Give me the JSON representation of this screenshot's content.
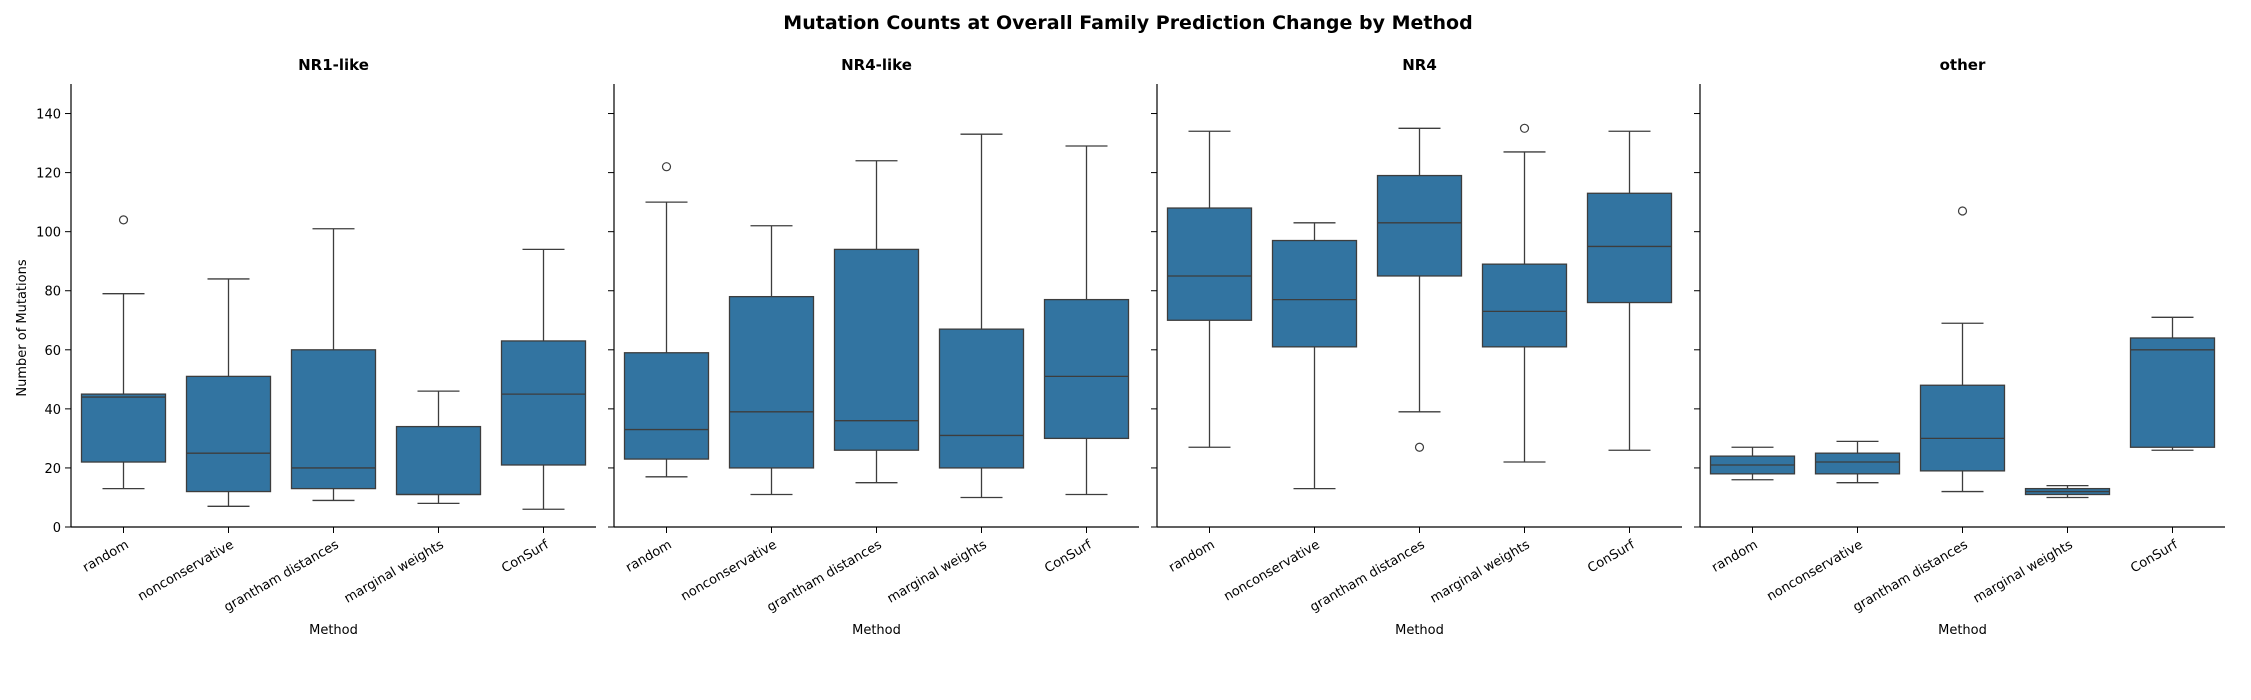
{
  "title": "Mutation Counts at Overall Family Prediction Change by Method",
  "y_label": "Number of Mutations",
  "x_label": "Method",
  "colors": {
    "box_fill": "#3274a1",
    "line": "#3d3d3d",
    "axis": "#000000"
  },
  "chart_data": {
    "type": "box",
    "title": "Mutation Counts at Overall Family Prediction Change by Method",
    "xlabel": "Method",
    "ylabel": "Number of Mutations",
    "ylim": [
      0,
      150
    ],
    "yticks": [
      0,
      20,
      40,
      60,
      80,
      100,
      120,
      140
    ],
    "categories": [
      "random",
      "nonconservative",
      "grantham distances",
      "marginal weights",
      "ConSurf"
    ],
    "shared_y": true,
    "grid": false,
    "panels": [
      {
        "title": "NR1-like",
        "boxes": [
          {
            "category": "random",
            "whisker_low": 13,
            "q1": 22,
            "median": 44,
            "q3": 45,
            "whisker_high": 79,
            "outliers": [
              104
            ]
          },
          {
            "category": "nonconservative",
            "whisker_low": 7,
            "q1": 12,
            "median": 25,
            "q3": 51,
            "whisker_high": 84,
            "outliers": []
          },
          {
            "category": "grantham distances",
            "whisker_low": 9,
            "q1": 13,
            "median": 20,
            "q3": 60,
            "whisker_high": 101,
            "outliers": []
          },
          {
            "category": "marginal weights",
            "whisker_low": 8,
            "q1": 11,
            "median": 11,
            "q3": 34,
            "whisker_high": 46,
            "outliers": []
          },
          {
            "category": "ConSurf",
            "whisker_low": 6,
            "q1": 21,
            "median": 45,
            "q3": 63,
            "whisker_high": 94,
            "outliers": []
          }
        ]
      },
      {
        "title": "NR4-like",
        "boxes": [
          {
            "category": "random",
            "whisker_low": 17,
            "q1": 23,
            "median": 33,
            "q3": 59,
            "whisker_high": 110,
            "outliers": [
              122
            ]
          },
          {
            "category": "nonconservative",
            "whisker_low": 11,
            "q1": 20,
            "median": 39,
            "q3": 78,
            "whisker_high": 102,
            "outliers": []
          },
          {
            "category": "grantham distances",
            "whisker_low": 15,
            "q1": 26,
            "median": 36,
            "q3": 94,
            "whisker_high": 124,
            "outliers": []
          },
          {
            "category": "marginal weights",
            "whisker_low": 10,
            "q1": 20,
            "median": 31,
            "q3": 67,
            "whisker_high": 133,
            "outliers": []
          },
          {
            "category": "ConSurf",
            "whisker_low": 11,
            "q1": 30,
            "median": 51,
            "q3": 77,
            "whisker_high": 129,
            "outliers": []
          }
        ]
      },
      {
        "title": "NR4",
        "boxes": [
          {
            "category": "random",
            "whisker_low": 27,
            "q1": 70,
            "median": 85,
            "q3": 108,
            "whisker_high": 134,
            "outliers": []
          },
          {
            "category": "nonconservative",
            "whisker_low": 13,
            "q1": 61,
            "median": 77,
            "q3": 97,
            "whisker_high": 103,
            "outliers": []
          },
          {
            "category": "grantham distances",
            "whisker_low": 39,
            "q1": 85,
            "median": 103,
            "q3": 119,
            "whisker_high": 135,
            "outliers": [
              27
            ]
          },
          {
            "category": "marginal weights",
            "whisker_low": 22,
            "q1": 61,
            "median": 73,
            "q3": 89,
            "whisker_high": 127,
            "outliers": [
              135
            ]
          },
          {
            "category": "ConSurf",
            "whisker_low": 26,
            "q1": 76,
            "median": 95,
            "q3": 113,
            "whisker_high": 134,
            "outliers": []
          }
        ]
      },
      {
        "title": "other",
        "boxes": [
          {
            "category": "random",
            "whisker_low": 16,
            "q1": 18,
            "median": 21,
            "q3": 24,
            "whisker_high": 27,
            "outliers": []
          },
          {
            "category": "nonconservative",
            "whisker_low": 15,
            "q1": 18,
            "median": 22,
            "q3": 25,
            "whisker_high": 29,
            "outliers": []
          },
          {
            "category": "grantham distances",
            "whisker_low": 12,
            "q1": 19,
            "median": 30,
            "q3": 48,
            "whisker_high": 69,
            "outliers": [
              107
            ]
          },
          {
            "category": "marginal weights",
            "whisker_low": 10,
            "q1": 11,
            "median": 12,
            "q3": 13,
            "whisker_high": 14,
            "outliers": []
          },
          {
            "category": "ConSurf",
            "whisker_low": 26,
            "q1": 27,
            "median": 60,
            "q3": 64,
            "whisker_high": 71,
            "outliers": []
          }
        ]
      }
    ]
  }
}
